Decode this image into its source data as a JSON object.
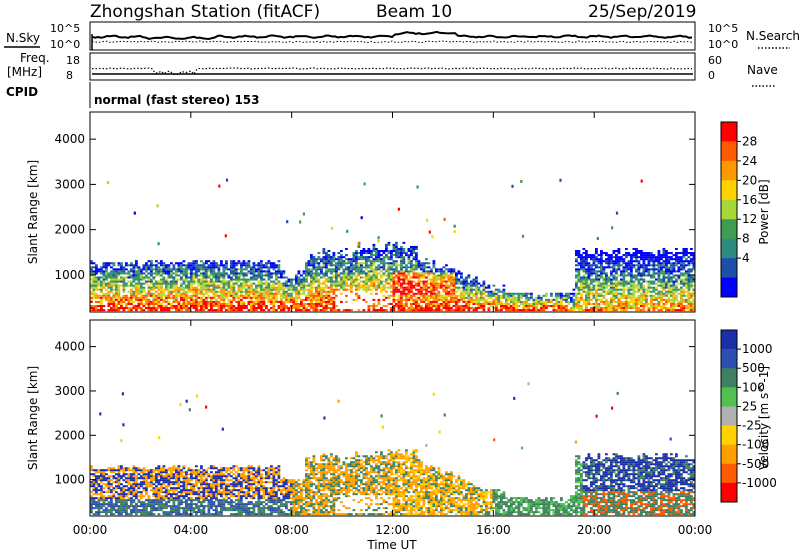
{
  "header": {
    "station": "Zhongshan Station (fitACF)",
    "beam": "Beam 10",
    "date": "25/Sep/2019"
  },
  "top_panels": {
    "nsky_label": "N.Sky",
    "nsky_ticks": [
      "10^5",
      "10^0"
    ],
    "nsearch_label": "N.Search",
    "nsearch_ticks": [
      "10^5",
      "10^0"
    ],
    "freq_label_1": "Freq.",
    "freq_label_2": "[MHz]",
    "freq_ticks": [
      "18",
      "8"
    ],
    "nave_label": "Nave",
    "nave_ticks": [
      "60",
      "0"
    ],
    "cpid_label": "CPID",
    "cpid_text": "normal (fast stereo) 153"
  },
  "chart_data": [
    {
      "type": "heatmap",
      "title": "",
      "ylabel": "Slant Range [km]",
      "ylim": [
        180,
        4600
      ],
      "yticks": [
        1000,
        2000,
        3000,
        4000
      ],
      "xlabel": "",
      "colorbar": {
        "label": "Power [dB]",
        "ticks": [
          "28",
          "24",
          "20",
          "16",
          "12",
          "8",
          "4"
        ],
        "colors": [
          "#ff0000",
          "#ff5a00",
          "#ff9900",
          "#ffd200",
          "#a8d838",
          "#3f9c52",
          "#2f8a7e",
          "#1d4fa8",
          "#0000ff"
        ]
      }
    },
    {
      "type": "heatmap",
      "title": "",
      "ylabel": "Slant Range [km]",
      "ylim": [
        180,
        4600
      ],
      "yticks": [
        1000,
        2000,
        3000,
        4000
      ],
      "xlabel": "Time UT",
      "x_ticks": [
        "00:00",
        "04:00",
        "08:00",
        "12:00",
        "16:00",
        "20:00",
        "00:00"
      ],
      "colorbar": {
        "label": "Velocity [m s^-1]",
        "ticks": [
          "1000",
          "500",
          "100",
          "25",
          "-25",
          "-100",
          "-500",
          "-1000"
        ],
        "colors": [
          "#1d2fa8",
          "#2f4fb0",
          "#3f8060",
          "#50c050",
          "#b0b0b0",
          "#ffd200",
          "#ffa000",
          "#ff5a00",
          "#ff0000"
        ]
      }
    }
  ]
}
